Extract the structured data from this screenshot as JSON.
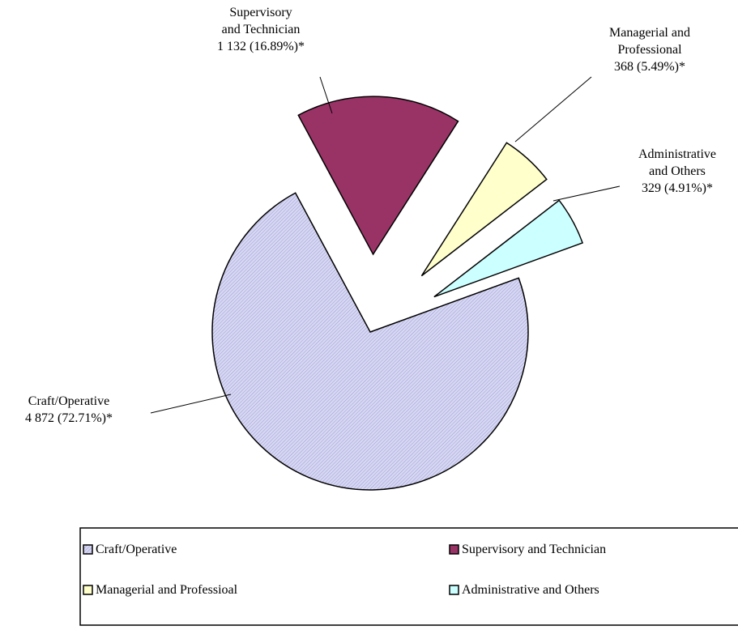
{
  "chart_data": {
    "type": "pie",
    "categories": [
      "Craft/Operative",
      "Supervisory and Technician",
      "Managerial and Professioal",
      "Administrative and Others"
    ],
    "values": [
      4872,
      1132,
      368,
      329
    ],
    "value_labels": [
      "4 872 (72.71%)*",
      "1 132 (16.89%)*",
      "368 (5.49%)*",
      "329 (4.91%)*"
    ],
    "labels": [
      [
        "Craft/Operative"
      ],
      [
        "Supervisory",
        "and Technician"
      ],
      [
        "Managerial and",
        "Professional"
      ],
      [
        "Administrative",
        "and Others"
      ]
    ],
    "colors": [
      "#c8c8ee",
      "#993366",
      "#ffffcc",
      "#ccffff"
    ],
    "legend": "bottom"
  }
}
